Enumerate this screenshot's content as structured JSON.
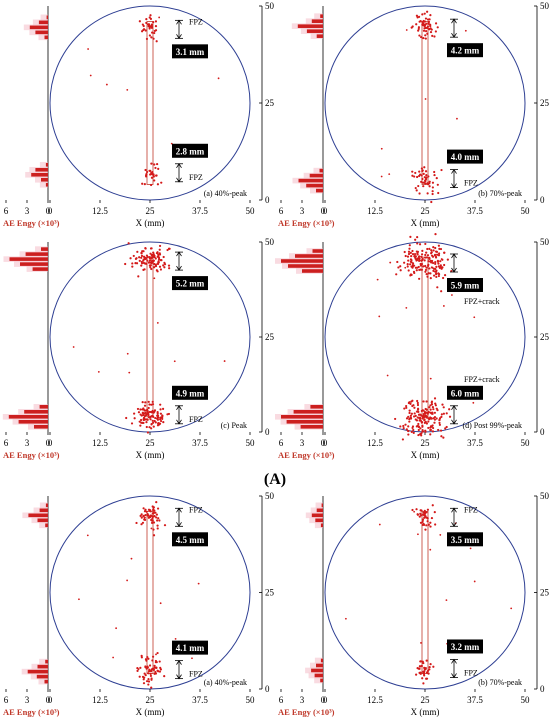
{
  "figure": {
    "group_label": "(A)"
  },
  "colors": {
    "circle": "#2e3f93",
    "points": "#d41a1a",
    "notch": "#c0392b",
    "bars": "#cc1f1f",
    "bars_fade": "#f3b8c4",
    "label_box": "#000000",
    "label_text": "#ffffff",
    "ae_label": "#c0392b"
  },
  "chart_data": [
    {
      "type": "scatter",
      "panel_label": "(a) 40%-peak",
      "xlabel": "X (mm)",
      "xticks": [
        "0",
        "12.5",
        "25",
        "37.5",
        "50"
      ],
      "yticks": [
        "0",
        "25",
        "50"
      ],
      "xlim": [
        0,
        50
      ],
      "ylim": [
        0,
        50
      ],
      "ae_axis_label": "AE Engy (×10³)",
      "ae_ticks": [
        "6",
        "3",
        "0"
      ],
      "labels": {
        "top": {
          "size": "3.1 mm",
          "zone": "FPZ"
        },
        "bottom": {
          "size": "2.8 mm",
          "zone": "FPZ"
        }
      },
      "ae_bars": {
        "top": [
          0.2,
          1.3,
          2.6,
          1.8,
          0.5
        ],
        "bottom": [
          0.3,
          1.8,
          2.4,
          1.0,
          0.3
        ]
      },
      "scatter": {
        "top": {
          "center": [
            25,
            44.5
          ],
          "spread": [
            1.1,
            1.5
          ],
          "count": 34
        },
        "bottom": {
          "center": [
            25,
            6.5
          ],
          "spread": [
            1.2,
            1.6
          ],
          "count": 30
        }
      }
    },
    {
      "type": "scatter",
      "panel_label": "(b) 70%-peak",
      "xlabel": "X (mm)",
      "xticks": [
        "0",
        "12.5",
        "25",
        "37.5",
        "50"
      ],
      "yticks": [
        "0",
        "25",
        "50"
      ],
      "xlim": [
        0,
        50
      ],
      "ylim": [
        0,
        50
      ],
      "ae_axis_label": "AE Engy (×10³)",
      "ae_ticks": [
        "6",
        "3",
        "0"
      ],
      "labels": {
        "top": {
          "size": "4.2 mm",
          "zone": ""
        },
        "bottom": {
          "size": "4.0 mm",
          "zone": "FPZ"
        }
      },
      "ae_bars": {
        "top": [
          0.4,
          1.6,
          3.6,
          2.3,
          0.9
        ],
        "bottom": [
          0.5,
          1.9,
          3.5,
          2.4,
          1.0
        ]
      },
      "scatter": {
        "top": {
          "center": [
            25,
            44.8
          ],
          "spread": [
            1.6,
            1.6
          ],
          "count": 56
        },
        "bottom": {
          "center": [
            25,
            5.0
          ],
          "spread": [
            1.7,
            1.9
          ],
          "count": 50
        }
      }
    },
    {
      "type": "scatter",
      "panel_label": "(c) Peak",
      "xlabel": "X (mm)",
      "xticks": [
        "0",
        "12.5",
        "25",
        "37.5",
        "50"
      ],
      "yticks": [
        "0",
        "25",
        "50"
      ],
      "xlim": [
        0,
        50
      ],
      "ylim": [
        0,
        50
      ],
      "ae_axis_label": "AE Engy (×10³)",
      "ae_ticks": [
        "6",
        "3",
        "0"
      ],
      "labels": {
        "top": {
          "size": "5.2 mm",
          "zone": ""
        },
        "bottom": {
          "size": "4.9 mm",
          "zone": "FPZ"
        }
      },
      "ae_bars": {
        "top": [
          1.0,
          3.2,
          5.5,
          4.0,
          2.2
        ],
        "bottom": [
          1.2,
          3.4,
          5.6,
          4.2,
          2.0
        ]
      },
      "scatter": {
        "top": {
          "center": [
            25,
            45.5
          ],
          "spread": [
            2.0,
            1.8
          ],
          "count": 110
        },
        "bottom": {
          "center": [
            25,
            4.0
          ],
          "spread": [
            2.0,
            2.0
          ],
          "count": 110
        }
      }
    },
    {
      "type": "scatter",
      "panel_label": "(d) Post 99%-peak",
      "xlabel": "X (mm)",
      "xticks": [
        "0",
        "12.5",
        "25",
        "37.5",
        "50"
      ],
      "yticks": [
        "0",
        "25",
        "50"
      ],
      "xlim": [
        0,
        50
      ],
      "ylim": [
        0,
        50
      ],
      "ae_axis_label": "AE Engy (×10³)",
      "ae_ticks": [
        "6",
        "3",
        "0"
      ],
      "labels": {
        "top": {
          "size": "5.9 mm",
          "zone": "FPZ+crack"
        },
        "bottom": {
          "size": "6.0 mm",
          "zone": "FPZ+crack"
        }
      },
      "ae_bars": {
        "top": [
          1.5,
          4.0,
          6.0,
          5.0,
          3.0
        ],
        "bottom": [
          1.8,
          4.2,
          6.0,
          5.2,
          3.2
        ]
      },
      "scatter": {
        "top": {
          "center": [
            25,
            45.0
          ],
          "spread": [
            3.0,
            2.5
          ],
          "count": 170
        },
        "bottom": {
          "center": [
            25,
            4.0
          ],
          "spread": [
            3.0,
            2.5
          ],
          "count": 170
        }
      }
    },
    {
      "type": "scatter",
      "panel_label": "(a) 40%-peak",
      "xlabel": "X (mm)",
      "xticks": [
        "0",
        "12.5",
        "25",
        "37.5",
        "50"
      ],
      "yticks": [
        "0",
        "25",
        "50"
      ],
      "xlim": [
        0,
        50
      ],
      "ylim": [
        0,
        50
      ],
      "ae_axis_label": "AE Engy (×10³)",
      "ae_ticks": [
        "6",
        "3",
        "0"
      ],
      "labels": {
        "top": {
          "size": "4.5 mm",
          "zone": "FPZ"
        },
        "bottom": {
          "size": "4.1 mm",
          "zone": "FPZ"
        }
      },
      "ae_bars": {
        "top": [
          0.3,
          1.2,
          2.8,
          1.5,
          0.4
        ],
        "bottom": [
          0.4,
          1.5,
          2.9,
          1.6,
          0.5
        ]
      },
      "scatter": {
        "top": {
          "center": [
            25,
            45.0
          ],
          "spread": [
            1.4,
            1.6
          ],
          "count": 60
        },
        "bottom": {
          "center": [
            25,
            4.5
          ],
          "spread": [
            1.4,
            1.8
          ],
          "count": 60
        }
      }
    },
    {
      "type": "scatter",
      "panel_label": "(b) 70%-peak",
      "xlabel": "X (mm)",
      "xticks": [
        "0",
        "12.5",
        "25",
        "37.5",
        "50"
      ],
      "yticks": [
        "0",
        "25",
        "50"
      ],
      "xlim": [
        0,
        50
      ],
      "ylim": [
        0,
        50
      ],
      "ae_axis_label": "AE Engy (×10³)",
      "ae_ticks": [
        "6",
        "3",
        "0"
      ],
      "labels": {
        "top": {
          "size": "3.5 mm",
          "zone": "FPZ"
        },
        "bottom": {
          "size": "3.2 mm",
          "zone": "FPZ"
        }
      },
      "ae_bars": {
        "top": [
          0.2,
          0.9,
          1.6,
          1.1,
          0.3
        ],
        "bottom": [
          0.3,
          1.0,
          1.7,
          1.2,
          0.4
        ]
      },
      "scatter": {
        "top": {
          "center": [
            25,
            45.0
          ],
          "spread": [
            1.1,
            1.4
          ],
          "count": 40
        },
        "bottom": {
          "center": [
            25,
            4.8
          ],
          "spread": [
            1.1,
            1.6
          ],
          "count": 38
        }
      }
    }
  ]
}
